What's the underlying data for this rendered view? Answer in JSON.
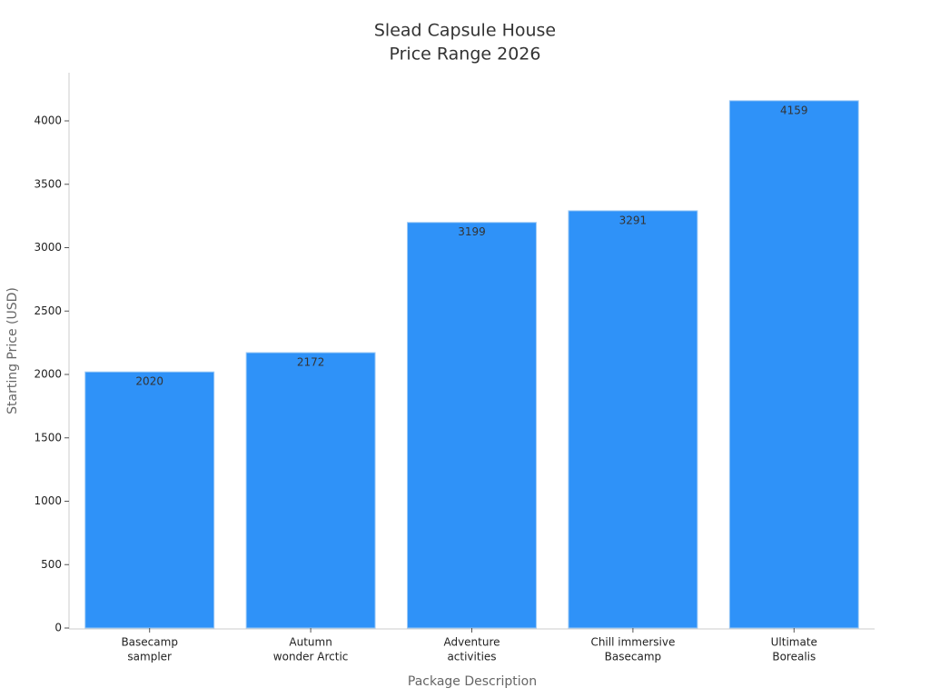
{
  "chart_data": {
    "type": "bar",
    "title": [
      "Slead Capsule House",
      "Price Range 2026"
    ],
    "xlabel": "Package Description",
    "ylabel": "Starting Price (USD)",
    "categories": [
      [
        "Basecamp",
        "sampler"
      ],
      [
        "Autumn",
        "wonder Arctic"
      ],
      [
        "Adventure",
        "activities"
      ],
      [
        "Chill immersive",
        "Basecamp"
      ],
      [
        "Ultimate",
        "Borealis"
      ]
    ],
    "values": [
      2020,
      2172,
      3199,
      3291,
      4159
    ],
    "color": "#2f92f8",
    "ylim": [
      0,
      4380
    ],
    "yticks": [
      0,
      500,
      1000,
      1500,
      2000,
      2500,
      3000,
      3500,
      4000
    ],
    "grid": false
  }
}
